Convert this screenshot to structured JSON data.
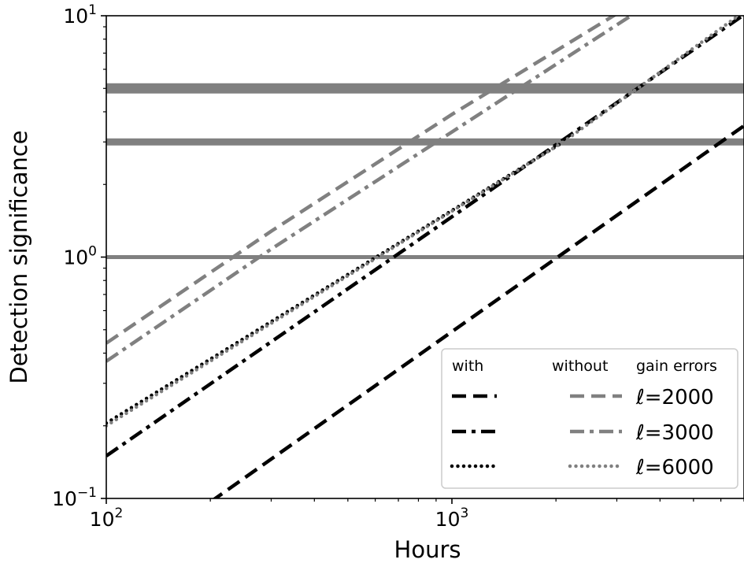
{
  "chart_data": {
    "type": "line",
    "x_scale": "log",
    "y_scale": "log",
    "xlim": [
      100,
      7000
    ],
    "ylim": [
      0.1,
      10
    ],
    "x_ticks": [
      {
        "value": 100,
        "base": "10",
        "exp": "2"
      },
      {
        "value": 1000,
        "base": "10",
        "exp": "3"
      }
    ],
    "y_ticks": [
      {
        "value": 0.1,
        "base": "10",
        "exp": "−1"
      },
      {
        "value": 1,
        "base": "10",
        "exp": "0"
      },
      {
        "value": 10,
        "base": "10",
        "exp": "1"
      }
    ],
    "xlabel": "Hours",
    "ylabel": "Detection significance",
    "hlines": [
      {
        "y": 1,
        "weight": "thin"
      },
      {
        "y": 3,
        "weight": "medium"
      },
      {
        "y": 5,
        "weight": "thick"
      }
    ],
    "legend": {
      "placement": "lower-right",
      "col_headers": [
        "with",
        "without",
        "gain errors"
      ],
      "rows": [
        {
          "label": "ℓ=2000",
          "style": "dashed"
        },
        {
          "label": "ℓ=3000",
          "style": "dashdot"
        },
        {
          "label": "ℓ=6000",
          "style": "dotted"
        }
      ]
    },
    "series": [
      {
        "group": "with",
        "ell": 2000,
        "style": "dashed",
        "color": "#000000",
        "x": [
          100,
          7000
        ],
        "y": [
          0.048,
          3.5
        ]
      },
      {
        "group": "with",
        "ell": 3000,
        "style": "dashdot",
        "color": "#000000",
        "x": [
          100,
          7000
        ],
        "y": [
          0.15,
          10.1
        ]
      },
      {
        "group": "with",
        "ell": 6000,
        "style": "dotted",
        "color": "#000000",
        "x": [
          100,
          2100
        ],
        "y": [
          0.205,
          3.0
        ]
      },
      {
        "group": "without",
        "ell": 2000,
        "style": "dashed",
        "color": "#808080",
        "x": [
          100,
          300,
          1000,
          3000
        ],
        "y": [
          0.44,
          1.28,
          3.9,
          10.2
        ]
      },
      {
        "group": "without",
        "ell": 3000,
        "style": "dashdot",
        "color": "#808080",
        "x": [
          100,
          300,
          1000,
          3400
        ],
        "y": [
          0.37,
          1.08,
          3.3,
          10.3
        ]
      },
      {
        "group": "without",
        "ell": 6000,
        "style": "dotted",
        "color": "#808080",
        "x": [
          100,
          2100,
          7000
        ],
        "y": [
          0.2,
          3.0,
          10.4
        ]
      }
    ]
  }
}
